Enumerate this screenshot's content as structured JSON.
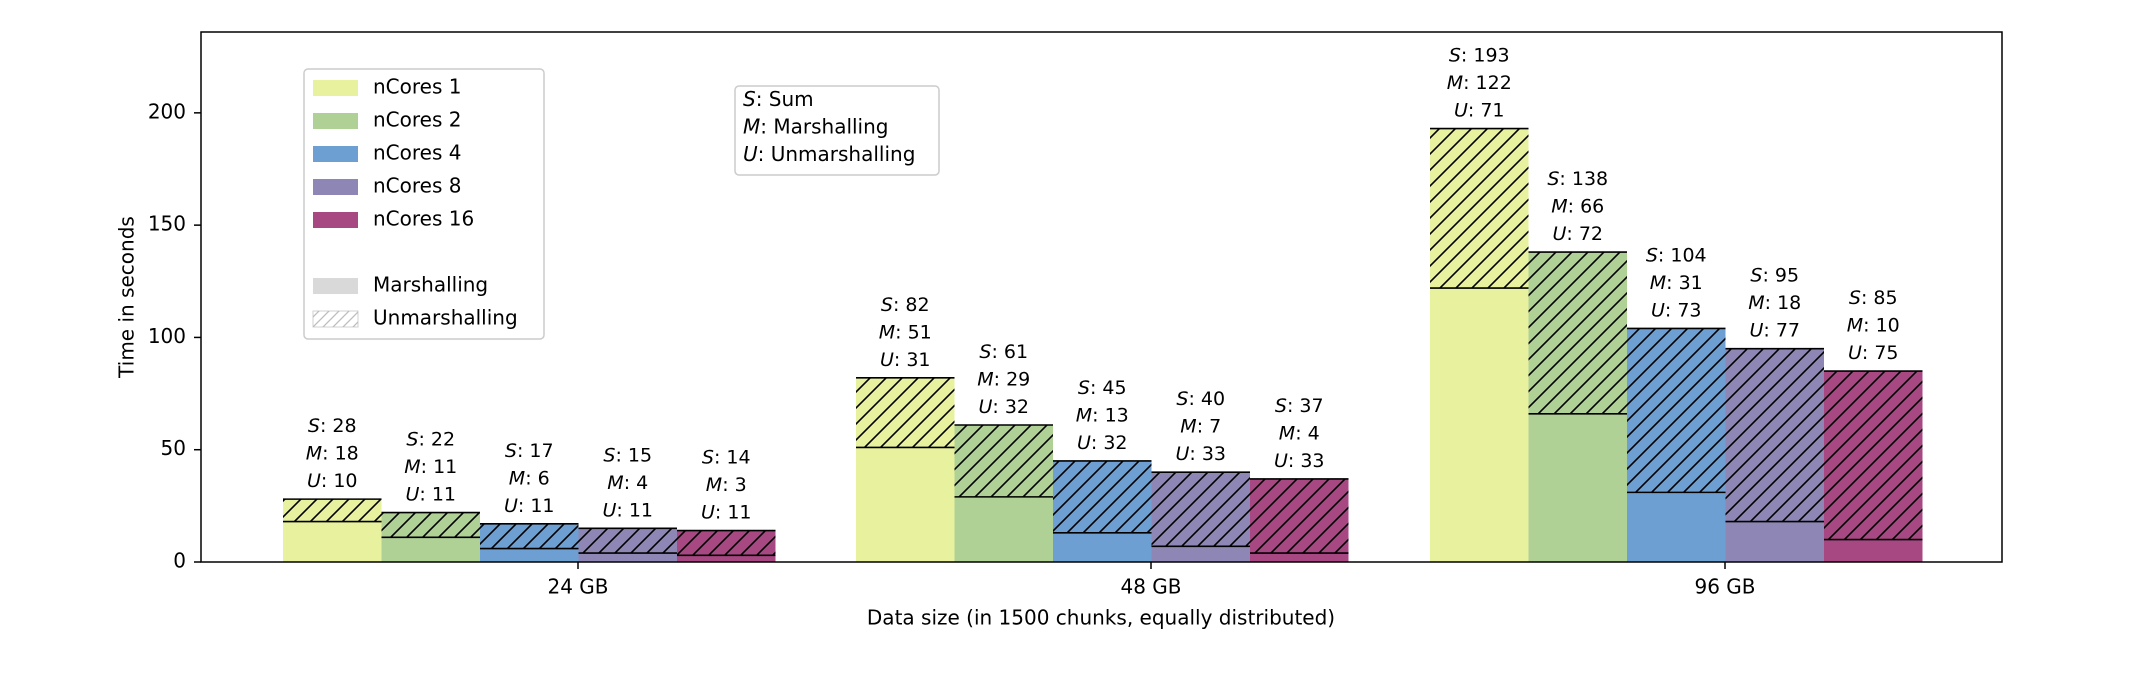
{
  "chart_data": {
    "type": "bar",
    "variant": "stacked-grouped",
    "xlabel": "Data size (in 1500 chunks, equally distributed)",
    "ylabel": "Time in seconds",
    "ylim": [
      0,
      236
    ],
    "yticks": [
      0,
      50,
      100,
      150,
      200
    ],
    "grid": false,
    "categories": [
      "24 GB",
      "48 GB",
      "96 GB"
    ],
    "stack_components": [
      {
        "name": "Marshalling",
        "style": "solid"
      },
      {
        "name": "Unmarshalling",
        "style": "hatched"
      }
    ],
    "series": [
      {
        "name": "nCores 1",
        "color": "#e8f19e",
        "sum": [
          28,
          82,
          193
        ],
        "marshalling": [
          18,
          51,
          122
        ],
        "unmarshalling": [
          10,
          31,
          71
        ]
      },
      {
        "name": "nCores 2",
        "color": "#afd196",
        "sum": [
          22,
          61,
          138
        ],
        "marshalling": [
          11,
          29,
          66
        ],
        "unmarshalling": [
          11,
          32,
          72
        ]
      },
      {
        "name": "nCores 4",
        "color": "#6e9fd3",
        "sum": [
          17,
          45,
          104
        ],
        "marshalling": [
          6,
          13,
          31
        ],
        "unmarshalling": [
          11,
          32,
          73
        ]
      },
      {
        "name": "nCores 8",
        "color": "#8e86b4",
        "sum": [
          15,
          40,
          95
        ],
        "marshalling": [
          4,
          7,
          18
        ],
        "unmarshalling": [
          11,
          33,
          77
        ]
      },
      {
        "name": "nCores 16",
        "color": "#a74883",
        "sum": [
          14,
          37,
          85
        ],
        "marshalling": [
          3,
          4,
          10
        ],
        "unmarshalling": [
          11,
          33,
          75
        ]
      }
    ],
    "legend": {
      "placement": "upper-left",
      "series_entries": [
        "nCores 1",
        "nCores 2",
        "nCores 4",
        "nCores 8",
        "nCores 16"
      ],
      "style_entries": [
        "Marshalling",
        "Unmarshalling"
      ]
    },
    "key_legend": {
      "placement": "upper-center-left",
      "entries": [
        {
          "abbr": "S",
          "text": ": Sum"
        },
        {
          "abbr": "M",
          "text": ": Marshalling"
        },
        {
          "abbr": "U",
          "text": ": Unmarshalling"
        }
      ]
    },
    "bar_label_format": {
      "sum_abbr": "S",
      "marshalling_abbr": "M",
      "unmarshalling_abbr": "U",
      "separator": ": "
    }
  }
}
